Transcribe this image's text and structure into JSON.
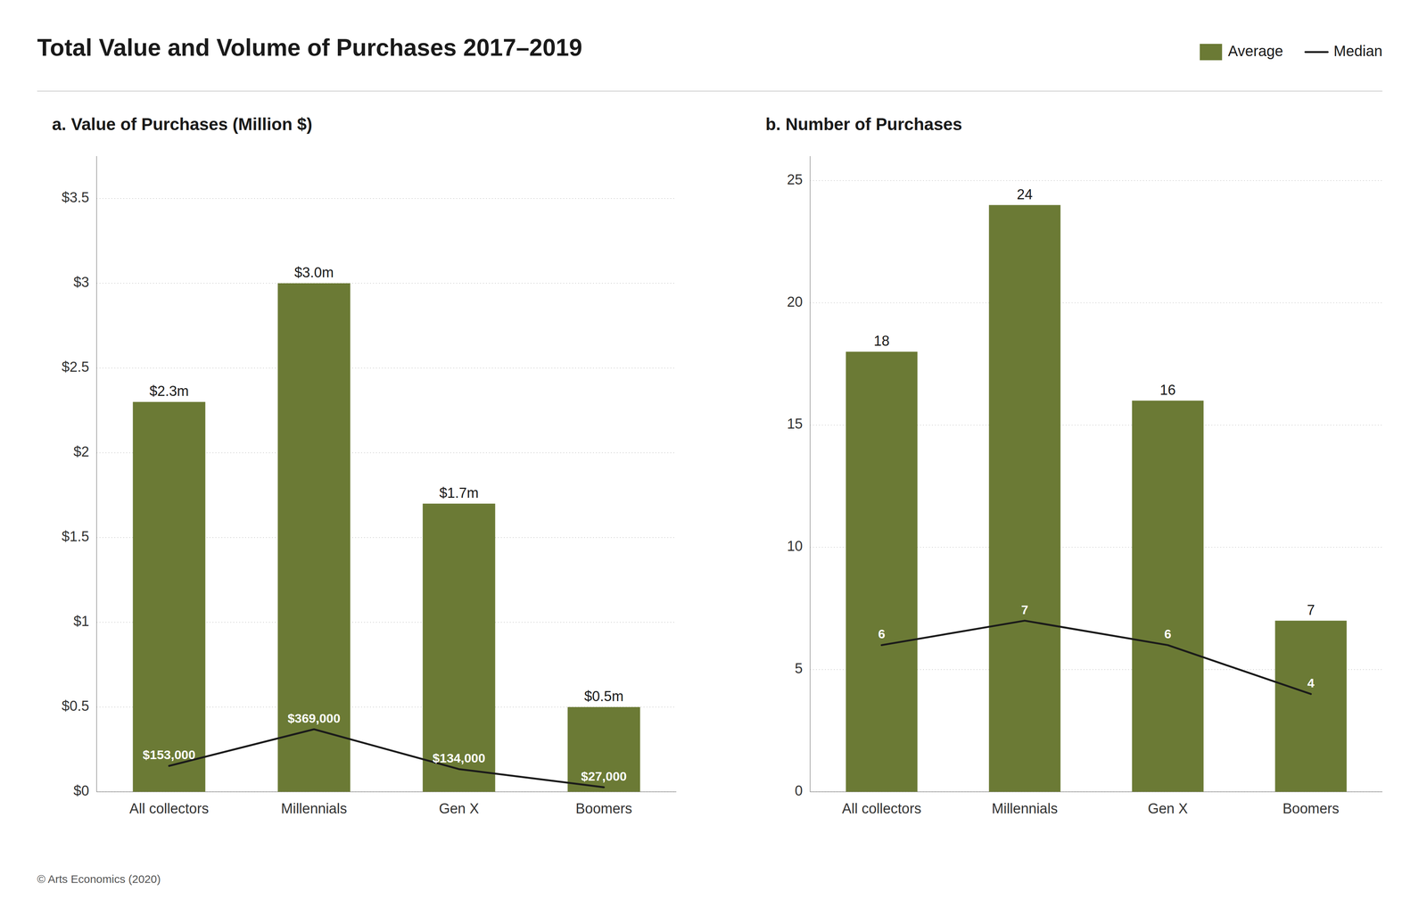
{
  "title": "Total Value and Volume of Purchases 2017–2019",
  "annotations": [
    "© Arts Economics (2020)"
  ],
  "chart_data": [
    {
      "type": "bar",
      "subtitle": "a. Value of Purchases (Million $)",
      "categories": [
        "All collectors",
        "Millennials",
        "Gen X",
        "Boomers"
      ],
      "series": [
        {
          "name": "Average",
          "type": "bar",
          "color": "#6b7a35",
          "values": [
            2.3,
            3.0,
            1.7,
            0.5
          ],
          "value_labels": [
            "$2.3m",
            "$3.0m",
            "$1.7m",
            "$0.5m"
          ]
        },
        {
          "name": "Median",
          "type": "line",
          "color": "#1a1a1a",
          "values": [
            0.153,
            0.369,
            0.134,
            0.027
          ],
          "value_labels": [
            "$153,000",
            "$369,000",
            "$134,000",
            "$27,000"
          ]
        }
      ],
      "ylim": [
        0,
        3.75
      ],
      "yticks": [
        {
          "value": 0,
          "label": "$0"
        },
        {
          "value": 0.5,
          "label": "$0.5"
        },
        {
          "value": 1.0,
          "label": "$1"
        },
        {
          "value": 1.5,
          "label": "$1.5"
        },
        {
          "value": 2.0,
          "label": "$2"
        },
        {
          "value": 2.5,
          "label": "$2.5"
        },
        {
          "value": 3.0,
          "label": "$3"
        },
        {
          "value": 3.5,
          "label": "$3.5"
        }
      ],
      "grid": true,
      "data_labels": true,
      "legend": "upper right"
    },
    {
      "type": "bar",
      "subtitle": "b. Number of Purchases",
      "categories": [
        "All collectors",
        "Millennials",
        "Gen X",
        "Boomers"
      ],
      "series": [
        {
          "name": "Average",
          "type": "bar",
          "color": "#6b7a35",
          "values": [
            18,
            24,
            16,
            7
          ]
        },
        {
          "name": "Median",
          "type": "line",
          "color": "#1a1a1a",
          "values": [
            6,
            7,
            6,
            4
          ]
        }
      ],
      "ylim": [
        0,
        26
      ],
      "yticks": [
        0,
        5,
        10,
        15,
        20,
        25
      ],
      "grid": true,
      "data_labels": true
    }
  ]
}
